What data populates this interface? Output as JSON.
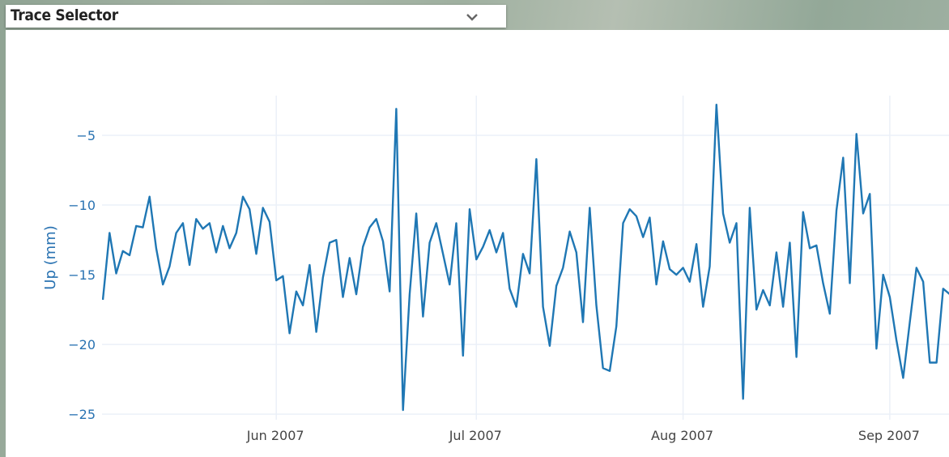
{
  "selector": {
    "label": "Trace Selector",
    "icon": "chevron-down-icon"
  },
  "chart_data": {
    "type": "line",
    "title": "",
    "xlabel": "",
    "ylabel": "Up (mm)",
    "xlim": [
      "2007-05-05T21:00",
      "2007-09-09T21:00"
    ],
    "ylim": [
      -25.4,
      -2.15
    ],
    "yticks": [
      -5,
      -10,
      -15,
      -20,
      -25
    ],
    "ytick_labels": [
      "−5",
      "−10",
      "−15",
      "−20",
      "−25"
    ],
    "xticks": [
      "2007-06-01",
      "2007-07-01",
      "2007-08-01",
      "2007-09-01"
    ],
    "xtick_labels": [
      "Jun 2007",
      "Jul 2007",
      "Aug 2007",
      "Sep 2007"
    ],
    "grid": true,
    "line_color": "#1f77b4",
    "start_date": "2007-05-06",
    "step": "daily",
    "values": [
      -16.8,
      -12.0,
      -14.9,
      -13.3,
      -13.6,
      -11.5,
      -11.6,
      -9.4,
      -13.1,
      -15.7,
      -14.4,
      -12.0,
      -11.3,
      -14.3,
      -11.0,
      -11.7,
      -11.3,
      -13.4,
      -11.5,
      -13.1,
      -12.0,
      -9.4,
      -10.3,
      -13.5,
      -10.2,
      -11.2,
      -15.4,
      -15.1,
      -19.2,
      -16.2,
      -17.2,
      -14.3,
      -19.1,
      -15.2,
      -12.7,
      -12.5,
      -16.6,
      -13.8,
      -16.4,
      -13.0,
      -11.6,
      -11.0,
      -12.6,
      -16.2,
      -3.1,
      -24.7,
      -16.4,
      -10.6,
      -18.0,
      -12.7,
      -11.3,
      -13.5,
      -15.7,
      -11.3,
      -20.8,
      -10.3,
      -13.9,
      -13.0,
      -11.8,
      -13.4,
      -12.0,
      -16.0,
      -17.3,
      -13.5,
      -14.9,
      -6.7,
      -17.3,
      -20.1,
      -15.8,
      -14.5,
      -11.9,
      -13.4,
      -18.4,
      -10.2,
      -17.2,
      -21.7,
      -21.9,
      -18.7,
      -11.3,
      -10.3,
      -10.8,
      -12.3,
      -10.9,
      -15.7,
      -12.6,
      -14.6,
      -15.0,
      -14.5,
      -15.5,
      -12.8,
      -17.3,
      -14.4,
      -2.8,
      -10.6,
      -12.7,
      -11.3,
      -23.9,
      -10.2,
      -17.5,
      -16.1,
      -17.2,
      -13.4,
      -17.3,
      -12.7,
      -20.9,
      -10.5,
      -13.1,
      -12.9,
      -15.6,
      -17.8,
      -10.4,
      -6.6,
      -15.6,
      -4.9,
      -10.6,
      -9.2,
      -20.3,
      -15.0,
      -16.6,
      -19.7,
      -22.4,
      -18.4,
      -14.5,
      -15.5,
      -21.3,
      -21.3,
      -16.0,
      -16.4
    ]
  }
}
